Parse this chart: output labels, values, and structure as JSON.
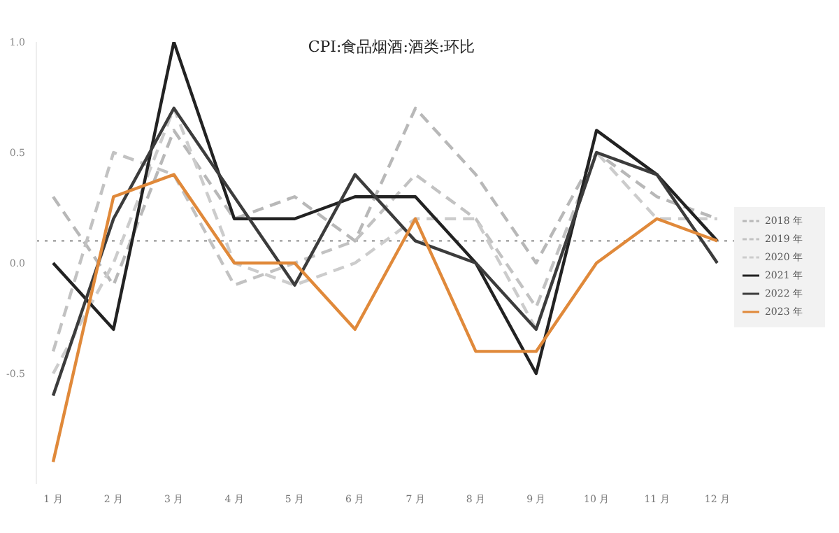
{
  "chart_data": {
    "type": "line",
    "title": "CPI:食品烟酒:酒类:环比",
    "categories": [
      "1 月",
      "2 月",
      "3 月",
      "4 月",
      "5 月",
      "6 月",
      "7 月",
      "8 月",
      "9 月",
      "10 月",
      "11 月",
      "12 月"
    ],
    "series": [
      {
        "name": "2018 年",
        "color": "#b8b8b8",
        "line_style": "dashed",
        "values": [
          0.3,
          -0.1,
          0.6,
          0.2,
          0.3,
          0.1,
          0.7,
          0.4,
          0.0,
          0.5,
          0.3,
          0.2
        ]
      },
      {
        "name": "2019 年",
        "color": "#c2c2c2",
        "line_style": "dashed",
        "values": [
          -0.4,
          0.5,
          0.4,
          -0.1,
          0.0,
          0.1,
          0.4,
          0.2,
          -0.2,
          0.5,
          0.4,
          0.1
        ]
      },
      {
        "name": "2020 年",
        "color": "#cccccc",
        "line_style": "dashed",
        "values": [
          -0.5,
          0.0,
          0.7,
          0.0,
          -0.1,
          0.0,
          0.2,
          0.2,
          -0.3,
          0.5,
          0.2,
          0.2
        ]
      },
      {
        "name": "2021 年",
        "color": "#222222",
        "line_style": "solid",
        "values": [
          0.0,
          -0.3,
          1.0,
          0.2,
          0.2,
          0.3,
          0.3,
          0.0,
          -0.5,
          0.6,
          0.4,
          0.1
        ]
      },
      {
        "name": "2022 年",
        "color": "#3c3c3c",
        "line_style": "solid",
        "values": [
          -0.6,
          0.2,
          0.7,
          0.3,
          -0.1,
          0.4,
          0.1,
          0.0,
          -0.3,
          0.5,
          0.4,
          0.0
        ]
      },
      {
        "name": "2023 年",
        "color": "#e0893a",
        "line_style": "solid",
        "values": [
          -0.9,
          0.3,
          0.4,
          0.0,
          0.0,
          -0.3,
          0.2,
          -0.4,
          -0.4,
          0.0,
          0.2,
          0.1
        ]
      }
    ],
    "ylim": [
      -1.0,
      1.0
    ],
    "yticks": [
      {
        "value": 1.0,
        "label": "1.0"
      },
      {
        "value": 0.5,
        "label": "0.5"
      },
      {
        "value": 0.0,
        "label": "0.0"
      },
      {
        "value": -0.5,
        "label": "-0.5"
      }
    ],
    "ref_lines": [
      {
        "axis": "y",
        "value": 0.1,
        "label": null,
        "color": "#999999",
        "line_style": "dotted"
      }
    ],
    "legend": "right",
    "marker": "none"
  }
}
